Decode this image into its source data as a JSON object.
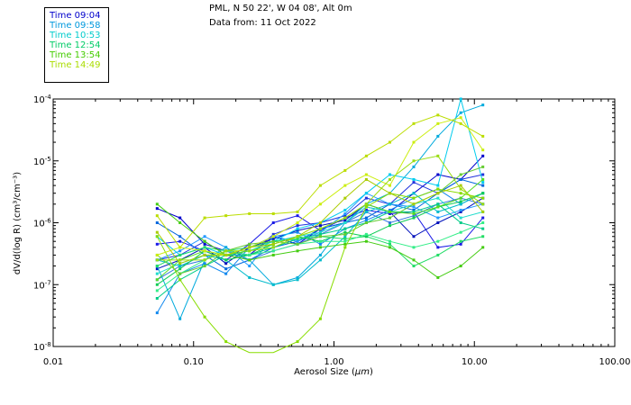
{
  "header": {
    "location": "PML, N 50 22', W 04 08', Alt 0m",
    "date": "Data from: 11 Oct 2022"
  },
  "chart_data": {
    "type": "line",
    "title": "PML, N 50 22', W 04 08', Alt 0m",
    "subtitle": "Data from: 11 Oct 2022",
    "xlabel_prefix": "Aerosol Size (",
    "xlabel_unit": "µm",
    "xlabel_suffix": ")",
    "ylabel": "dV/d(log R) (cm³/cm⁻³)",
    "xscale": "log",
    "yscale": "log",
    "xlim": [
      0.01,
      100
    ],
    "ylim": [
      1e-08,
      0.0001
    ],
    "xticks": [
      0.01,
      0.1,
      1,
      10,
      100
    ],
    "xtick_labels": [
      "0.01",
      "0.10",
      "1.00",
      "10.00",
      "100.00"
    ],
    "ytick_labels": [
      {
        "value": 0.0001,
        "mant": "10",
        "exp": "-4"
      },
      {
        "value": 1e-05,
        "mant": "10",
        "exp": "-5"
      },
      {
        "value": 1e-06,
        "mant": "10",
        "exp": "-6"
      },
      {
        "value": 1e-07,
        "mant": "10",
        "exp": "-7"
      },
      {
        "value": 1e-08,
        "mant": "10",
        "exp": "-8"
      }
    ],
    "x": [
      0.055,
      0.08,
      0.12,
      0.17,
      0.25,
      0.37,
      0.55,
      0.8,
      1.2,
      1.7,
      2.5,
      3.7,
      5.5,
      8,
      11.5
    ],
    "series": [
      {
        "name": "Time 09:04",
        "color": "#0000cc",
        "values": [
          1.7e-06,
          1.2e-06,
          4.5e-07,
          3.5e-07,
          3e-07,
          6e-07,
          4.5e-07,
          8e-07,
          1e-06,
          1.8e-06,
          1.5e-06,
          3e-06,
          6e-06,
          5e-06,
          1.2e-05
        ]
      },
      {
        "name": "Time 09:04",
        "color": "#1a1ae6",
        "values": [
          4.5e-07,
          5e-07,
          3.5e-07,
          2.5e-07,
          4.5e-07,
          1e-06,
          1.3e-06,
          7.5e-07,
          1.2e-06,
          1.6e-06,
          1.4e-06,
          1.5e-06,
          4e-07,
          4.5e-07,
          1.2e-06
        ]
      },
      {
        "name": "Time 09:04",
        "color": "#2233dd",
        "values": [
          2.5e-07,
          3e-07,
          5e-07,
          3e-07,
          3e-07,
          6.5e-07,
          9e-07,
          1e-06,
          1.3e-06,
          2.5e-06,
          2e-06,
          4.5e-06,
          3e-06,
          5e-06,
          6e-06
        ]
      },
      {
        "name": "Time 09:04",
        "color": "#0011bb",
        "values": [
          1.8e-07,
          2.5e-07,
          4e-07,
          2.2e-07,
          4e-07,
          5.5e-07,
          7.5e-07,
          9e-07,
          1.1e-06,
          2e-06,
          1.5e-06,
          6e-07,
          1e-06,
          1.5e-06,
          2.5e-06
        ]
      },
      {
        "name": "Time 09:58",
        "color": "#0066dd",
        "values": [
          1e-06,
          6e-07,
          3e-07,
          1.8e-07,
          2.5e-07,
          4e-07,
          5e-07,
          8e-07,
          1e-06,
          1.2e-06,
          2e-06,
          1.6e-06,
          3e-06,
          5e-06,
          4e-06
        ]
      },
      {
        "name": "Time 09:58",
        "color": "#1188ee",
        "values": [
          3.5e-08,
          1.5e-07,
          2.2e-07,
          1.5e-07,
          4e-07,
          6e-07,
          7e-07,
          4.5e-07,
          8e-07,
          1.1e-06,
          1.6e-06,
          2.5e-06,
          3.5e-06,
          2e-06,
          3e-06
        ]
      },
      {
        "name": "Time 09:58",
        "color": "#2299ff",
        "values": [
          2.5e-07,
          3.5e-07,
          6e-07,
          4e-07,
          2e-07,
          6e-07,
          5e-07,
          7e-07,
          1.4e-06,
          3e-06,
          2e-06,
          1.8e-06,
          1.2e-06,
          1.6e-06,
          2e-06
        ]
      },
      {
        "name": "Time 09:58",
        "color": "#3377dd",
        "values": [
          1.2e-07,
          2e-07,
          2.5e-07,
          3.5e-07,
          2.5e-07,
          3.5e-07,
          4.5e-07,
          6.5e-07,
          1e-06,
          1.5e-06,
          1e-06,
          1.3e-06,
          2e-06,
          2.5e-06,
          2e-06
        ]
      },
      {
        "name": "Time 10:53",
        "color": "#00aadd",
        "values": [
          2e-07,
          2.8e-08,
          2.5e-07,
          4e-07,
          2.5e-07,
          1e-07,
          1.3e-07,
          3e-07,
          1e-06,
          2e-06,
          3e-06,
          8e-06,
          2.5e-05,
          6e-05,
          8e-05
        ]
      },
      {
        "name": "Time 10:53",
        "color": "#00ccee",
        "values": [
          6e-07,
          3e-07,
          4e-07,
          3e-07,
          3.5e-07,
          5e-07,
          8e-07,
          1e-06,
          1.6e-06,
          3e-06,
          6e-06,
          5e-06,
          4e-06,
          0.0001,
          4.5e-06
        ]
      },
      {
        "name": "Time 10:53",
        "color": "#00bbcc",
        "values": [
          2.5e-07,
          2e-07,
          3e-07,
          2.5e-07,
          1.3e-07,
          1e-07,
          1.2e-07,
          2.5e-07,
          6e-07,
          1.5e-06,
          2e-06,
          3e-06,
          1.5e-06,
          2e-06,
          3e-06
        ]
      },
      {
        "name": "Time 10:53",
        "color": "#22ddcc",
        "values": [
          1.5e-07,
          2.2e-07,
          3e-07,
          3e-07,
          3.5e-07,
          5e-07,
          6e-07,
          7e-07,
          1e-06,
          1.8e-06,
          1.5e-06,
          2e-06,
          2.5e-06,
          1.2e-06,
          1.5e-06
        ]
      },
      {
        "name": "Time 12:54",
        "color": "#00cc88",
        "values": [
          6e-08,
          1.2e-07,
          2e-07,
          3e-07,
          3e-07,
          4e-07,
          5.5e-07,
          6.5e-07,
          8e-07,
          1e-06,
          1.5e-06,
          1.5e-06,
          2e-06,
          1e-06,
          8e-07
        ]
      },
      {
        "name": "Time 12:54",
        "color": "#22dd66",
        "values": [
          2e-07,
          3e-07,
          4e-07,
          3.5e-07,
          4e-07,
          5e-07,
          5.5e-07,
          6e-07,
          5.5e-07,
          6e-07,
          4.5e-07,
          2e-07,
          3e-07,
          5e-07,
          6e-07
        ]
      },
      {
        "name": "Time 12:54",
        "color": "#11cc55",
        "values": [
          1e-07,
          1.8e-07,
          3.5e-07,
          2.5e-07,
          3e-07,
          4.5e-07,
          6e-07,
          5e-07,
          7e-07,
          6e-07,
          9e-07,
          1.2e-06,
          1.8e-06,
          2.2e-06,
          3e-06
        ]
      },
      {
        "name": "Time 12:54",
        "color": "#33ee88",
        "values": [
          8e-08,
          1.5e-07,
          2.5e-07,
          3.5e-07,
          3e-07,
          3.5e-07,
          4.5e-07,
          5e-07,
          5e-07,
          6.5e-07,
          5e-07,
          4e-07,
          5e-07,
          7e-07,
          1e-06
        ]
      },
      {
        "name": "Time 13:54",
        "color": "#44cc11",
        "values": [
          2e-06,
          1e-06,
          5e-07,
          3e-07,
          2.5e-07,
          3e-07,
          3.5e-07,
          4e-07,
          4.5e-07,
          5e-07,
          4e-07,
          2.5e-07,
          1.3e-07,
          2e-07,
          4e-07
        ]
      },
      {
        "name": "Time 13:54",
        "color": "#55dd22",
        "values": [
          1.2e-07,
          2.5e-07,
          3.5e-07,
          3e-07,
          3.5e-07,
          4.5e-07,
          6e-07,
          8e-07,
          1.2e-06,
          2e-06,
          1.5e-06,
          1.4e-06,
          1.8e-06,
          2.5e-06,
          5e-06
        ]
      },
      {
        "name": "Time 13:54",
        "color": "#66cc33",
        "values": [
          3e-07,
          1.5e-07,
          2e-07,
          3.5e-07,
          4.5e-07,
          5e-07,
          4.5e-07,
          6e-07,
          6.5e-07,
          1e-06,
          1.2e-06,
          2e-06,
          3e-06,
          6e-06,
          8e-06
        ]
      },
      {
        "name": "Time 13:54",
        "color": "#88dd00",
        "values": [
          6e-07,
          1.2e-07,
          3e-08,
          1.2e-08,
          8e-09,
          8e-09,
          1.2e-08,
          2.8e-08,
          4e-07,
          1.8e-06,
          3e-06,
          2.5e-06,
          3.5e-06,
          3e-06,
          2.5e-06
        ]
      },
      {
        "name": "Time 14:49",
        "color": "#bbdd00",
        "values": [
          1.3e-06,
          4e-07,
          1.2e-06,
          1.3e-06,
          1.4e-06,
          1.4e-06,
          1.5e-06,
          4e-06,
          7e-06,
          1.2e-05,
          2e-05,
          4e-05,
          5.5e-05,
          4e-05,
          2.5e-05
        ]
      },
      {
        "name": "Time 14:49",
        "color": "#ccee11",
        "values": [
          3e-07,
          4e-07,
          3.5e-07,
          3e-07,
          4e-07,
          6e-07,
          1e-06,
          2e-06,
          4e-06,
          6e-06,
          4e-06,
          2e-05,
          4e-05,
          5e-05,
          1.5e-05
        ]
      },
      {
        "name": "Time 14:49",
        "color": "#aacc00",
        "values": [
          7e-07,
          2.2e-07,
          3e-07,
          3e-07,
          4e-07,
          4.5e-07,
          6e-07,
          1e-06,
          2.5e-06,
          5e-06,
          3e-06,
          2e-06,
          3e-06,
          4e-06,
          1.5e-06
        ]
      },
      {
        "name": "Time 14:49",
        "color": "#99dd11",
        "values": [
          2.5e-07,
          2.5e-07,
          2.5e-07,
          3.5e-07,
          3.5e-07,
          4e-07,
          6e-07,
          8e-07,
          1.2e-06,
          2e-06,
          5e-06,
          1e-05,
          1.2e-05,
          3.5e-06,
          2e-06
        ]
      }
    ],
    "legend": [
      {
        "label": "Time 09:04",
        "color": "#0000cc"
      },
      {
        "label": "Time 09:58",
        "color": "#0099dd"
      },
      {
        "label": "Time 10:53",
        "color": "#00cccc"
      },
      {
        "label": "Time 12:54",
        "color": "#00cc66"
      },
      {
        "label": "Time 13:54",
        "color": "#44cc00"
      },
      {
        "label": "Time 14:49",
        "color": "#aadd00"
      }
    ],
    "legend_position": "top-left outside"
  }
}
